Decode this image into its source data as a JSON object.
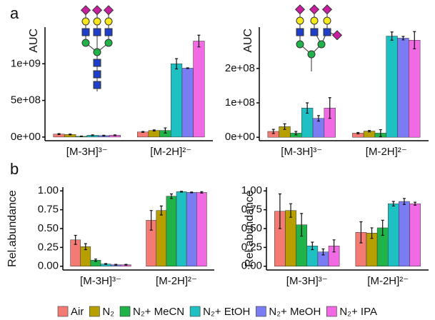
{
  "chart_data": [
    {
      "type": "bar",
      "panel_label": "a",
      "y_label": "AUC",
      "categories": [
        "[M-3H]³⁻",
        "[M-2H]²⁻"
      ],
      "ylim": [
        -50000000,
        1500000000
      ],
      "yticks": [
        {
          "value": 0,
          "label": "0e+00"
        },
        {
          "value": 500000000,
          "label": "5e+08"
        },
        {
          "value": 1000000000,
          "label": "1e+09"
        }
      ],
      "series": [
        {
          "name": "Air",
          "color": "#f37b74",
          "values": [
            40000000,
            70000000
          ],
          "errors": [
            6000000,
            6000000
          ]
        },
        {
          "name": "N₂",
          "color": "#b79f00",
          "values": [
            35000000,
            90000000
          ],
          "errors": [
            5000000,
            8000000
          ]
        },
        {
          "name": "N₂+ MeCN",
          "color": "#1fb34a",
          "values": [
            10000000,
            90000000
          ],
          "errors": [
            3000000,
            35000000
          ]
        },
        {
          "name": "N₂+ EtOH",
          "color": "#1fc0c2",
          "values": [
            25000000,
            1000000000
          ],
          "errors": [
            5000000,
            70000000
          ]
        },
        {
          "name": "N₂+ MeOH",
          "color": "#7a7cf4",
          "values": [
            20000000,
            940000000
          ],
          "errors": [
            4000000,
            5000000
          ]
        },
        {
          "name": "N₂+ IPA",
          "color": "#f26ae3",
          "values": [
            25000000,
            1310000000
          ],
          "errors": [
            4000000,
            80000000
          ]
        }
      ]
    },
    {
      "type": "bar",
      "y_label": "AUC",
      "categories": [
        "[M-3H]³⁻",
        "[M-2H]²⁻"
      ],
      "ylim": [
        -10000000,
        320000000
      ],
      "yticks": [
        {
          "value": 0,
          "label": "0e+00"
        },
        {
          "value": 100000000,
          "label": "1e+08"
        },
        {
          "value": 200000000,
          "label": "2e+08"
        }
      ],
      "series": [
        {
          "color": "#f37b74",
          "values": [
            17000000,
            12000000
          ],
          "errors": [
            6000000,
            2000000
          ]
        },
        {
          "color": "#b79f00",
          "values": [
            31000000,
            18000000
          ],
          "errors": [
            8000000,
            2000000
          ]
        },
        {
          "color": "#1fb34a",
          "values": [
            12000000,
            12000000
          ],
          "errors": [
            5000000,
            10000000
          ]
        },
        {
          "color": "#1fc0c2",
          "values": [
            85000000,
            294000000
          ],
          "errors": [
            15000000,
            12000000
          ]
        },
        {
          "color": "#7a7cf4",
          "values": [
            55000000,
            288000000
          ],
          "errors": [
            8000000,
            5000000
          ]
        },
        {
          "color": "#f26ae3",
          "values": [
            85000000,
            282000000
          ],
          "errors": [
            30000000,
            25000000
          ]
        }
      ]
    },
    {
      "type": "bar",
      "panel_label": "b",
      "y_label": "Rel.abundance",
      "categories": [
        "[M-3H]³⁻",
        "[M-2H]²⁻"
      ],
      "ylim": [
        -0.05,
        1.05
      ],
      "yticks": [
        {
          "value": 0,
          "label": "0.00"
        },
        {
          "value": 0.25,
          "label": "0.25"
        },
        {
          "value": 0.5,
          "label": "0.50"
        },
        {
          "value": 0.75,
          "label": "0.75"
        },
        {
          "value": 1,
          "label": "1.00"
        }
      ],
      "series": [
        {
          "color": "#f37b74",
          "values": [
            0.35,
            0.61
          ],
          "errors": [
            0.06,
            0.13
          ]
        },
        {
          "color": "#b79f00",
          "values": [
            0.26,
            0.74
          ],
          "errors": [
            0.04,
            0.06
          ]
        },
        {
          "color": "#1fb34a",
          "values": [
            0.08,
            0.93
          ],
          "errors": [
            0.015,
            0.03
          ]
        },
        {
          "color": "#1fc0c2",
          "values": [
            0.03,
            0.99
          ],
          "errors": [
            0.005,
            0.005
          ]
        },
        {
          "color": "#7a7cf4",
          "values": [
            0.02,
            0.98
          ],
          "errors": [
            0.005,
            0.005
          ]
        },
        {
          "color": "#f26ae3",
          "values": [
            0.02,
            0.98
          ],
          "errors": [
            0.005,
            0.01
          ]
        }
      ]
    },
    {
      "type": "bar",
      "y_label": "Rel.abundance",
      "categories": [
        "[M-3H]³⁻",
        "[M-2H]²⁻"
      ],
      "ylim": [
        -0.05,
        1.05
      ],
      "yticks": [
        {
          "value": 0,
          "label": "0.00"
        },
        {
          "value": 0.25,
          "label": "0.25"
        },
        {
          "value": 0.5,
          "label": "0.50"
        },
        {
          "value": 0.75,
          "label": "0.75"
        },
        {
          "value": 1,
          "label": "1.00"
        }
      ],
      "series": [
        {
          "color": "#f37b74",
          "values": [
            0.73,
            0.45
          ],
          "errors": [
            0.23,
            0.14
          ]
        },
        {
          "color": "#b79f00",
          "values": [
            0.74,
            0.44
          ],
          "errors": [
            0.09,
            0.07
          ]
        },
        {
          "color": "#1fb34a",
          "values": [
            0.55,
            0.51
          ],
          "errors": [
            0.15,
            0.1
          ]
        },
        {
          "color": "#1fc0c2",
          "values": [
            0.27,
            0.83
          ],
          "errors": [
            0.05,
            0.03
          ]
        },
        {
          "color": "#7a7cf4",
          "values": [
            0.19,
            0.86
          ],
          "errors": [
            0.04,
            0.04
          ]
        },
        {
          "color": "#f26ae3",
          "values": [
            0.27,
            0.83
          ],
          "errors": [
            0.08,
            0.02
          ]
        }
      ]
    }
  ]
}
